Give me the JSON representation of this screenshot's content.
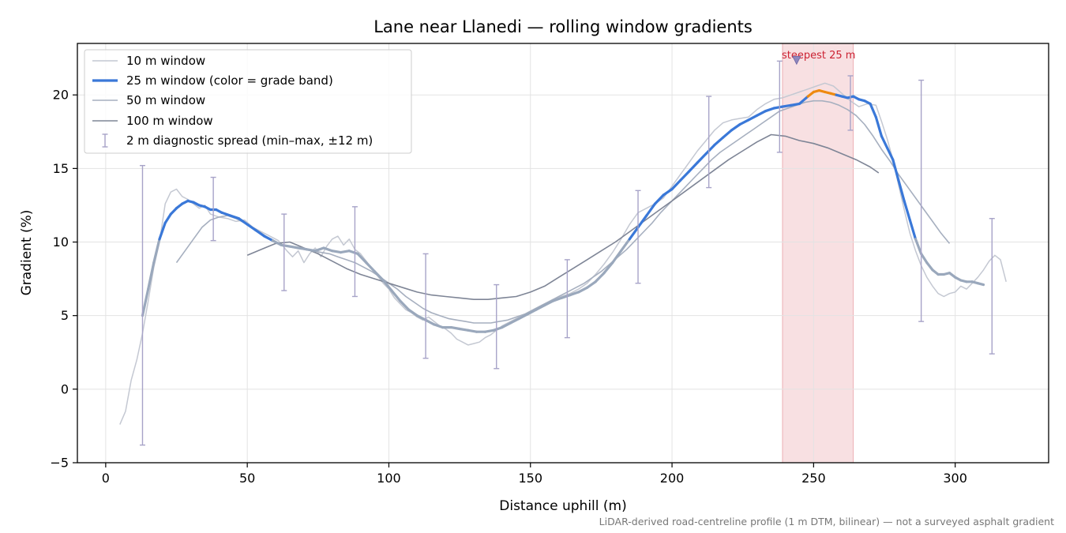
{
  "chart_data": {
    "type": "line",
    "title": "Lane near Llanedi — rolling window gradients",
    "xlabel": "Distance uphill (m)",
    "ylabel": "Gradient (%)",
    "xlim": [
      -10,
      333
    ],
    "ylim": [
      -5,
      23.5
    ],
    "xticks": [
      0,
      50,
      100,
      150,
      200,
      250,
      300
    ],
    "yticks": [
      -5,
      0,
      5,
      10,
      15,
      20
    ],
    "grid": true,
    "legend_position": "top-left",
    "footnote": "LiDAR-derived road-centreline profile (1 m DTM, bilinear) — not a surveyed asphalt gradient",
    "highlight": {
      "x_range": [
        239,
        264
      ],
      "marker_x": 244,
      "marker_y": 22.3,
      "label": "steepest 25 m",
      "color": "#cc2233"
    },
    "colors": {
      "w10": "#c4c8d2",
      "w25": "#3a78d8",
      "w25_steep": "#ee8a10",
      "w25_grey": "#9aa8bc",
      "w50": "#a6afbf",
      "w100": "#7e8596",
      "diag": "#a7a3c8"
    },
    "series": [
      {
        "name": "10 m window",
        "x": [
          5,
          7,
          9,
          11,
          13,
          15,
          17,
          19,
          21,
          23,
          25,
          27,
          29,
          31,
          33,
          35,
          37,
          40,
          43,
          46,
          49,
          52,
          55,
          58,
          61,
          64,
          66,
          68,
          70,
          72,
          74,
          76,
          78,
          80,
          82,
          84,
          86,
          88,
          90,
          92,
          94,
          96,
          98,
          100,
          102,
          104,
          106,
          108,
          110,
          112,
          114,
          116,
          118,
          120,
          122,
          124,
          126,
          128,
          130,
          132,
          134,
          136,
          138,
          140,
          143,
          146,
          149,
          152,
          155,
          158,
          161,
          164,
          167,
          170,
          173,
          176,
          179,
          182,
          185,
          188,
          191,
          194,
          197,
          200,
          203,
          206,
          209,
          212,
          215,
          218,
          221,
          224,
          227,
          230,
          233,
          236,
          239,
          242,
          245,
          248,
          251,
          254,
          257,
          260,
          263,
          266,
          269,
          272,
          274,
          276,
          278,
          280,
          282,
          284,
          286,
          288,
          290,
          292,
          294,
          296,
          298,
          300,
          302,
          304,
          306,
          308,
          310,
          312,
          314,
          316,
          318
        ],
        "y": [
          -2.4,
          -1.5,
          0.6,
          2.0,
          3.8,
          6.0,
          8.3,
          10.0,
          12.6,
          13.4,
          13.6,
          13.1,
          12.9,
          12.6,
          12.3,
          12.5,
          11.9,
          11.7,
          11.6,
          11.4,
          11.5,
          11.0,
          10.7,
          10.4,
          10.1,
          9.4,
          9.0,
          9.4,
          8.6,
          9.2,
          9.6,
          9.0,
          9.7,
          10.2,
          10.4,
          9.8,
          10.2,
          9.5,
          9.2,
          8.7,
          8.2,
          7.7,
          7.2,
          6.8,
          6.2,
          5.8,
          5.4,
          5.2,
          4.9,
          4.7,
          4.9,
          4.6,
          4.3,
          4.1,
          3.8,
          3.4,
          3.2,
          3.0,
          3.1,
          3.2,
          3.5,
          3.7,
          4.0,
          4.3,
          4.6,
          4.9,
          5.2,
          5.5,
          5.8,
          6.1,
          6.3,
          6.5,
          6.8,
          7.2,
          7.8,
          8.5,
          9.3,
          10.2,
          11.2,
          12.0,
          12.3,
          12.6,
          13.0,
          13.8,
          14.6,
          15.4,
          16.2,
          16.9,
          17.6,
          18.1,
          18.3,
          18.4,
          18.5,
          19.0,
          19.4,
          19.7,
          19.8,
          20.0,
          20.2,
          20.4,
          20.6,
          20.8,
          20.6,
          20.1,
          19.6,
          19.2,
          19.4,
          19.3,
          18.2,
          17.0,
          15.6,
          13.9,
          12.2,
          10.6,
          9.4,
          8.4,
          7.6,
          7.0,
          6.5,
          6.3,
          6.5,
          6.6,
          7.0,
          6.8,
          7.2,
          7.6,
          8.1,
          8.7,
          9.1,
          8.8,
          7.3
        ],
        "color": "#c4c8d2"
      },
      {
        "name": "25 m window (color = grade band)",
        "x": [
          13,
          15,
          17,
          19,
          21,
          23,
          25,
          27,
          29,
          31,
          33,
          35,
          37,
          39,
          41,
          44,
          47,
          50,
          53,
          56,
          59,
          62,
          65,
          68,
          71,
          74,
          77,
          80,
          83,
          86,
          89,
          92,
          95,
          98,
          101,
          104,
          107,
          110,
          113,
          116,
          119,
          122,
          125,
          128,
          131,
          134,
          137,
          140,
          143,
          146,
          149,
          152,
          155,
          158,
          161,
          164,
          167,
          170,
          173,
          176,
          179,
          182,
          185,
          188,
          191,
          194,
          197,
          200,
          203,
          206,
          209,
          212,
          215,
          218,
          221,
          224,
          227,
          230,
          233,
          236,
          239,
          242,
          245,
          248,
          250,
          252,
          254,
          256,
          258,
          260,
          262,
          264,
          266,
          268,
          270,
          272,
          274,
          276,
          278,
          280,
          282,
          284,
          286,
          288,
          290,
          292,
          294,
          296,
          298,
          300,
          302,
          304,
          306,
          308,
          310
        ],
        "y": [
          5.0,
          6.8,
          8.6,
          10.2,
          11.3,
          11.9,
          12.3,
          12.6,
          12.8,
          12.7,
          12.5,
          12.4,
          12.2,
          12.2,
          12.0,
          11.8,
          11.6,
          11.2,
          10.8,
          10.4,
          10.1,
          9.8,
          9.7,
          9.6,
          9.5,
          9.4,
          9.6,
          9.4,
          9.3,
          9.4,
          9.2,
          8.6,
          8.0,
          7.4,
          6.7,
          6.0,
          5.4,
          5.0,
          4.7,
          4.4,
          4.2,
          4.2,
          4.1,
          4.0,
          3.9,
          3.9,
          4.0,
          4.2,
          4.5,
          4.8,
          5.1,
          5.4,
          5.7,
          6.0,
          6.2,
          6.4,
          6.6,
          6.9,
          7.3,
          7.9,
          8.6,
          9.4,
          10.2,
          11.0,
          11.8,
          12.6,
          13.2,
          13.6,
          14.2,
          14.8,
          15.4,
          16.0,
          16.6,
          17.1,
          17.6,
          18.0,
          18.3,
          18.6,
          18.9,
          19.1,
          19.2,
          19.3,
          19.4,
          19.9,
          20.2,
          20.3,
          20.2,
          20.1,
          20.0,
          19.9,
          19.8,
          19.9,
          19.7,
          19.6,
          19.4,
          18.5,
          17.2,
          16.4,
          15.6,
          14.2,
          12.8,
          11.5,
          10.2,
          9.2,
          8.6,
          8.1,
          7.8,
          7.8,
          7.9,
          7.6,
          7.4,
          7.3,
          7.3,
          7.2,
          7.1
        ],
        "color": "#3a78d8"
      },
      {
        "name": "50 m window",
        "x": [
          25,
          28,
          31,
          34,
          37,
          40,
          43,
          46,
          49,
          52,
          55,
          58,
          61,
          64,
          67,
          70,
          73,
          76,
          79,
          82,
          85,
          88,
          91,
          94,
          97,
          100,
          103,
          106,
          109,
          112,
          115,
          118,
          121,
          124,
          127,
          130,
          133,
          136,
          139,
          142,
          145,
          148,
          151,
          154,
          157,
          160,
          163,
          166,
          169,
          172,
          175,
          178,
          181,
          184,
          187,
          190,
          193,
          196,
          199,
          202,
          205,
          208,
          211,
          214,
          217,
          220,
          223,
          226,
          229,
          232,
          235,
          238,
          241,
          244,
          247,
          250,
          253,
          256,
          259,
          262,
          265,
          268,
          271,
          274,
          277,
          280,
          283,
          286,
          289,
          292,
          295,
          298
        ],
        "y": [
          8.6,
          9.4,
          10.2,
          11.0,
          11.5,
          11.7,
          11.8,
          11.6,
          11.3,
          11.0,
          10.6,
          10.2,
          9.9,
          9.7,
          9.6,
          9.5,
          9.4,
          9.3,
          9.2,
          9.0,
          8.8,
          8.6,
          8.3,
          8.0,
          7.6,
          7.2,
          6.8,
          6.3,
          5.9,
          5.5,
          5.2,
          5.0,
          4.8,
          4.7,
          4.6,
          4.5,
          4.5,
          4.5,
          4.6,
          4.7,
          4.9,
          5.1,
          5.4,
          5.7,
          6.0,
          6.3,
          6.6,
          6.9,
          7.2,
          7.6,
          8.0,
          8.5,
          9.0,
          9.5,
          10.1,
          10.7,
          11.3,
          12.0,
          12.6,
          13.2,
          13.8,
          14.4,
          15.0,
          15.6,
          16.1,
          16.5,
          16.9,
          17.3,
          17.7,
          18.1,
          18.5,
          18.9,
          19.1,
          19.3,
          19.5,
          19.6,
          19.6,
          19.5,
          19.3,
          19.0,
          18.6,
          18.0,
          17.2,
          16.3,
          15.5,
          14.6,
          13.8,
          13.0,
          12.2,
          11.4,
          10.6,
          9.9
        ],
        "color": "#a6afbf"
      },
      {
        "name": "100 m window",
        "x": [
          50,
          55,
          60,
          65,
          70,
          75,
          80,
          85,
          90,
          95,
          100,
          105,
          110,
          115,
          120,
          125,
          130,
          135,
          140,
          145,
          150,
          155,
          160,
          165,
          170,
          175,
          180,
          185,
          190,
          195,
          200,
          205,
          210,
          215,
          220,
          225,
          230,
          235,
          240,
          245,
          250,
          255,
          260,
          265,
          270,
          273
        ],
        "y": [
          9.1,
          9.5,
          9.9,
          10.0,
          9.6,
          9.2,
          8.7,
          8.2,
          7.8,
          7.5,
          7.2,
          6.9,
          6.6,
          6.4,
          6.3,
          6.2,
          6.1,
          6.1,
          6.2,
          6.3,
          6.6,
          7.0,
          7.6,
          8.2,
          8.8,
          9.4,
          10.0,
          10.7,
          11.4,
          12.1,
          12.8,
          13.5,
          14.2,
          14.9,
          15.6,
          16.2,
          16.8,
          17.3,
          17.2,
          16.9,
          16.7,
          16.4,
          16.0,
          15.6,
          15.1,
          14.7
        ],
        "color": "#7e8596"
      },
      {
        "name": "2 m diagnostic spread (min–max, ±12 m)",
        "x": [
          13,
          38,
          63,
          88,
          113,
          138,
          163,
          188,
          213,
          238,
          263,
          288,
          313
        ],
        "low": [
          -3.8,
          10.1,
          6.7,
          6.3,
          2.1,
          1.4,
          3.5,
          7.2,
          13.7,
          16.1,
          17.6,
          4.6,
          2.4
        ],
        "high": [
          15.2,
          14.4,
          11.9,
          12.4,
          9.2,
          7.1,
          8.8,
          13.5,
          19.9,
          22.3,
          21.3,
          21.0,
          11.6
        ],
        "color": "#a7a3c8"
      }
    ]
  }
}
